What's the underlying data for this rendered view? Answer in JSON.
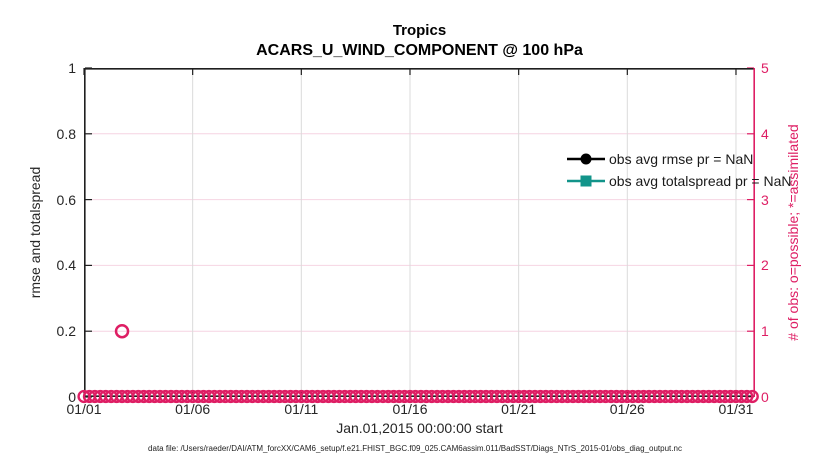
{
  "figure": {
    "title": "Tropics",
    "subtitle": "ACARS_U_WIND_COMPONENT @ 100 hPa",
    "xlabel": "Jan.01,2015 00:00:00 start",
    "ylabel_left": "rmse and totalspread",
    "ylabel_right": "# of obs: o=possible; *=assimilated",
    "footer": "data file: /Users/raeder/DAI/ATM_forcXX/CAM6_setup/f.e21.FHIST_BGC.f09_025.CAM6assim.011/BadSST/Diags_NTrS_2015-01/obs_diag_output.nc"
  },
  "colors": {
    "accent_pink": "#DE1E64",
    "grid_pink": "#F6D4E2",
    "grid_gray": "#DBDBDB",
    "axis_dark": "#1F1F1F",
    "teal": "#12948A",
    "black": "#000000"
  },
  "legend": [
    {
      "label": "obs avg rmse pr = NaN",
      "marker": "circle",
      "color": "#000000"
    },
    {
      "label": "obs avg totalspread pr = NaN",
      "marker": "square",
      "color": "#12948A"
    }
  ],
  "chart_data": {
    "type": "line",
    "title": "Tropics",
    "subtitle": "ACARS_U_WIND_COMPONENT @ 100 hPa",
    "xlabel": "Jan.01,2015 00:00:00 start",
    "ylabel_left": "rmse and totalspread",
    "ylabel_right": "# of obs: o=possible; *=assimilated",
    "xlim_days": [
      0,
      30.875
    ],
    "xticks": [
      {
        "day": 0,
        "label": "01/01"
      },
      {
        "day": 5,
        "label": "01/06"
      },
      {
        "day": 10,
        "label": "01/11"
      },
      {
        "day": 15,
        "label": "01/16"
      },
      {
        "day": 20,
        "label": "01/21"
      },
      {
        "day": 25,
        "label": "01/26"
      },
      {
        "day": 30,
        "label": "01/31"
      }
    ],
    "ylim_left": [
      0,
      1
    ],
    "yticks_left": [
      "0",
      "0.2",
      "0.4",
      "0.6",
      "0.8",
      "1"
    ],
    "ylim_right": [
      0,
      5
    ],
    "yticks_right": [
      "0",
      "1",
      "2",
      "3",
      "4",
      "5"
    ],
    "grid": {
      "horizontal_right_values": [
        1,
        2,
        3,
        4
      ],
      "vertical_days": [
        5,
        10,
        15,
        20,
        25,
        30
      ]
    },
    "legend_position": "top-right-inside",
    "series": [
      {
        "name": "obs avg rmse pr = NaN",
        "axis": "left",
        "marker": "circle",
        "color": "#000000",
        "value": "NaN",
        "points": []
      },
      {
        "name": "obs avg totalspread pr = NaN",
        "axis": "left",
        "marker": "square",
        "color": "#12948A",
        "value": "NaN",
        "points": []
      },
      {
        "name": "# of obs possible (o)",
        "axis": "right",
        "marker": "open-circle",
        "color": "#DE1E64",
        "x_start_day": 0,
        "x_end_day": 30.75,
        "x_step_days": 0.25,
        "baseline_value": 0,
        "exceptions": [
          {
            "x_day": 1.75,
            "value": 1
          }
        ]
      }
    ]
  }
}
